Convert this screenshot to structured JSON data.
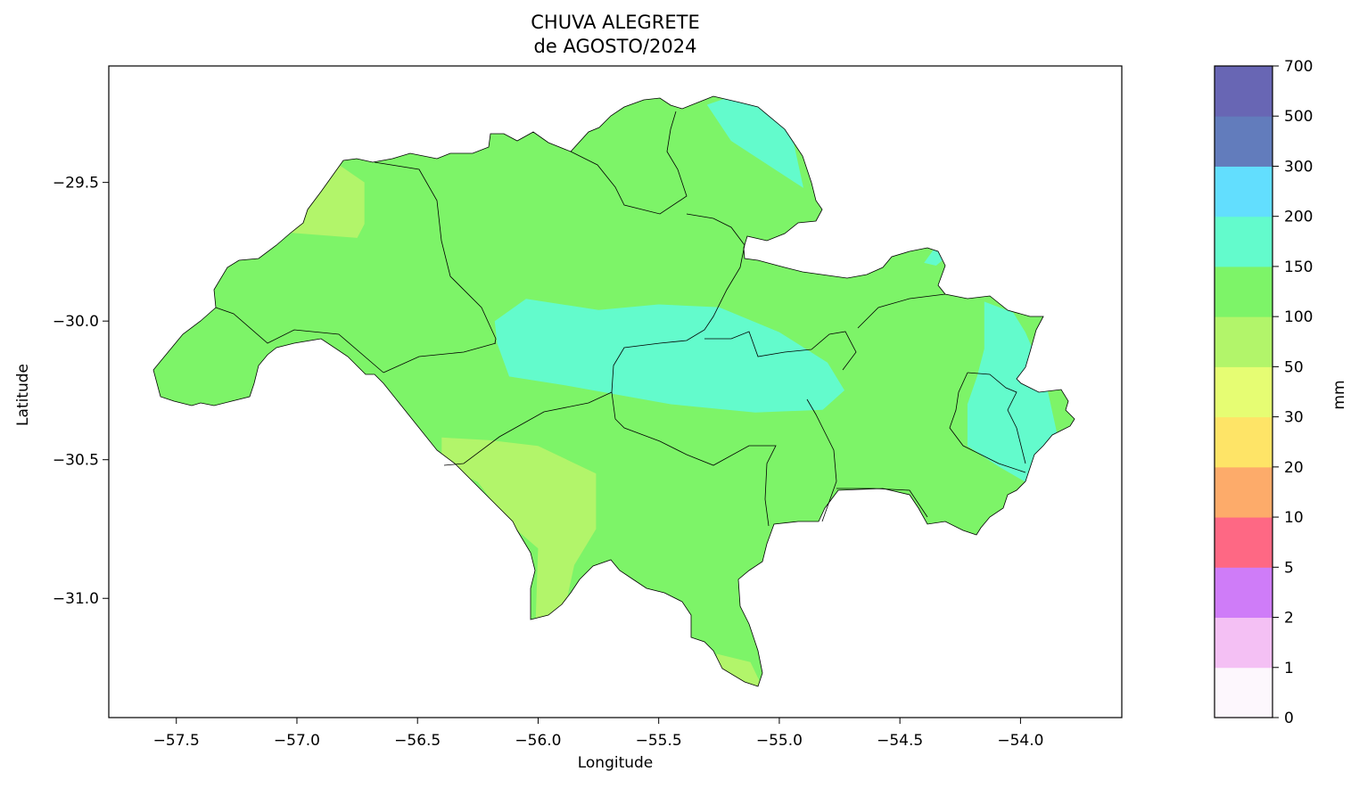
{
  "title_line1": "CHUVA ALEGRETE",
  "title_line2": "de AGOSTO/2024",
  "xlabel": "Longitude",
  "ylabel": "Latitude",
  "colorbar_label": "mm",
  "chart_data": {
    "type": "heatmap",
    "xlim": [
      -57.78,
      -53.58
    ],
    "ylim": [
      -31.43,
      -29.08
    ],
    "xticks": [
      -57.5,
      -57.0,
      -56.5,
      -56.0,
      -55.5,
      -55.0,
      -54.5,
      -54.0
    ],
    "xtick_labels": [
      "−57.5",
      "−57.0",
      "−56.5",
      "−56.0",
      "−55.5",
      "−55.0",
      "−54.5",
      "−54.0"
    ],
    "yticks": [
      -29.5,
      -30.0,
      -30.5,
      -31.0
    ],
    "ytick_labels": [
      "−29.5",
      "−30.0",
      "−30.5",
      "−31.0"
    ],
    "colorbar": {
      "levels": [
        "0",
        "1",
        "2",
        "5",
        "10",
        "20",
        "30",
        "50",
        "100",
        "150",
        "200",
        "300",
        "500",
        "700"
      ],
      "colors": [
        "#fdf7fd",
        "#f4c0f4",
        "#cf7cf8",
        "#fe6884",
        "#fdab6a",
        "#fee467",
        "#e6fd73",
        "#b2f56a",
        "#7df468",
        "#63fbcc",
        "#62defe",
        "#627cbc",
        "#6866b4"
      ]
    },
    "region_color": "#7df468",
    "zones": [
      {
        "range": "50-100",
        "color": "#b2f56a",
        "polygon": [
          [
            -57.05,
            -29.63
          ],
          [
            -56.95,
            -29.52
          ],
          [
            -56.82,
            -29.44
          ],
          [
            -56.72,
            -29.5
          ],
          [
            -56.72,
            -29.65
          ],
          [
            -56.75,
            -29.7
          ],
          [
            -57.05,
            -29.68
          ]
        ]
      },
      {
        "range": "50-100",
        "color": "#b2f56a",
        "polygon": [
          [
            -56.4,
            -30.42
          ],
          [
            -56.2,
            -30.43
          ],
          [
            -56.0,
            -30.45
          ],
          [
            -55.76,
            -30.55
          ],
          [
            -55.76,
            -30.75
          ],
          [
            -55.85,
            -30.88
          ],
          [
            -55.9,
            -31.08
          ],
          [
            -56.01,
            -31.08
          ],
          [
            -56.0,
            -30.82
          ],
          [
            -56.12,
            -30.73
          ],
          [
            -56.25,
            -30.58
          ],
          [
            -56.4,
            -30.52
          ]
        ]
      },
      {
        "range": "50-100",
        "color": "#b2f56a",
        "polygon": [
          [
            -55.26,
            -31.2
          ],
          [
            -55.12,
            -31.23
          ],
          [
            -55.07,
            -31.32
          ],
          [
            -55.09,
            -31.33
          ],
          [
            -55.25,
            -31.26
          ]
        ]
      },
      {
        "range": "150-200",
        "color": "#63fbcc",
        "polygon": [
          [
            -55.2,
            -29.19
          ],
          [
            -55.1,
            -29.16
          ],
          [
            -55.0,
            -29.24
          ],
          [
            -54.94,
            -29.36
          ],
          [
            -54.9,
            -29.52
          ],
          [
            -55.2,
            -29.35
          ],
          [
            -55.3,
            -29.22
          ]
        ]
      },
      {
        "range": "150-200",
        "color": "#63fbcc",
        "polygon": [
          [
            -56.18,
            -30.0
          ],
          [
            -56.05,
            -29.92
          ],
          [
            -55.75,
            -29.96
          ],
          [
            -55.5,
            -29.94
          ],
          [
            -55.25,
            -29.95
          ],
          [
            -55.0,
            -30.04
          ],
          [
            -54.8,
            -30.15
          ],
          [
            -54.73,
            -30.25
          ],
          [
            -54.82,
            -30.32
          ],
          [
            -55.1,
            -30.33
          ],
          [
            -55.45,
            -30.3
          ],
          [
            -55.9,
            -30.23
          ],
          [
            -56.12,
            -30.2
          ],
          [
            -56.17,
            -30.08
          ]
        ]
      },
      {
        "range": "150-200",
        "color": "#63fbcc",
        "polygon": [
          [
            -54.15,
            -29.93
          ],
          [
            -54.03,
            -29.97
          ],
          [
            -53.98,
            -30.04
          ],
          [
            -53.9,
            -30.2
          ],
          [
            -53.85,
            -30.4
          ],
          [
            -53.85,
            -30.52
          ],
          [
            -53.98,
            -30.58
          ],
          [
            -54.1,
            -30.52
          ],
          [
            -54.22,
            -30.45
          ],
          [
            -54.22,
            -30.3
          ],
          [
            -54.18,
            -30.2
          ],
          [
            -54.15,
            -30.1
          ]
        ]
      },
      {
        "range": "150-200",
        "color": "#63fbcc",
        "polygon": [
          [
            -54.4,
            -29.79
          ],
          [
            -54.35,
            -29.73
          ],
          [
            -54.28,
            -29.75
          ],
          [
            -54.35,
            -29.8
          ]
        ]
      }
    ]
  }
}
